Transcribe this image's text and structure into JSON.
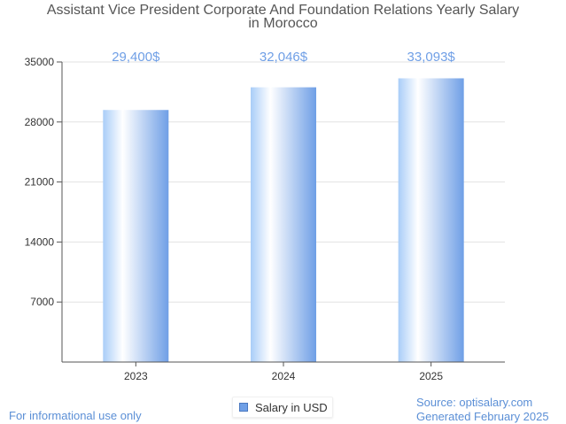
{
  "chart_data": {
    "type": "bar",
    "title_lines": [
      "Assistant Vice President Corporate And Foundation Relations Yearly Salary",
      "in Morocco"
    ],
    "categories": [
      "2023",
      "2024",
      "2025"
    ],
    "series": [
      {
        "name": "Salary in USD",
        "values": [
          29400,
          32046,
          33093
        ]
      }
    ],
    "data_labels": [
      "29,400$",
      "32,046$",
      "33,093$"
    ],
    "y_ticks": [
      7000,
      14000,
      21000,
      28000,
      35000
    ],
    "ylim": [
      0,
      35000
    ],
    "grid": true,
    "legend_position": "bottom-center"
  },
  "colors": {
    "bar_light": "#ffffff",
    "bar_mid": "#a9cdf8",
    "bar_dark": "#6f9fe6",
    "data_label": "#6f9fe6",
    "grid": "#e2e2e2",
    "axis": "#555555"
  },
  "footer": {
    "disclaimer": "For informational use only",
    "source": "Source: optisalary.com",
    "generated": "Generated February 2025"
  },
  "legend": {
    "label": "Salary in USD"
  }
}
